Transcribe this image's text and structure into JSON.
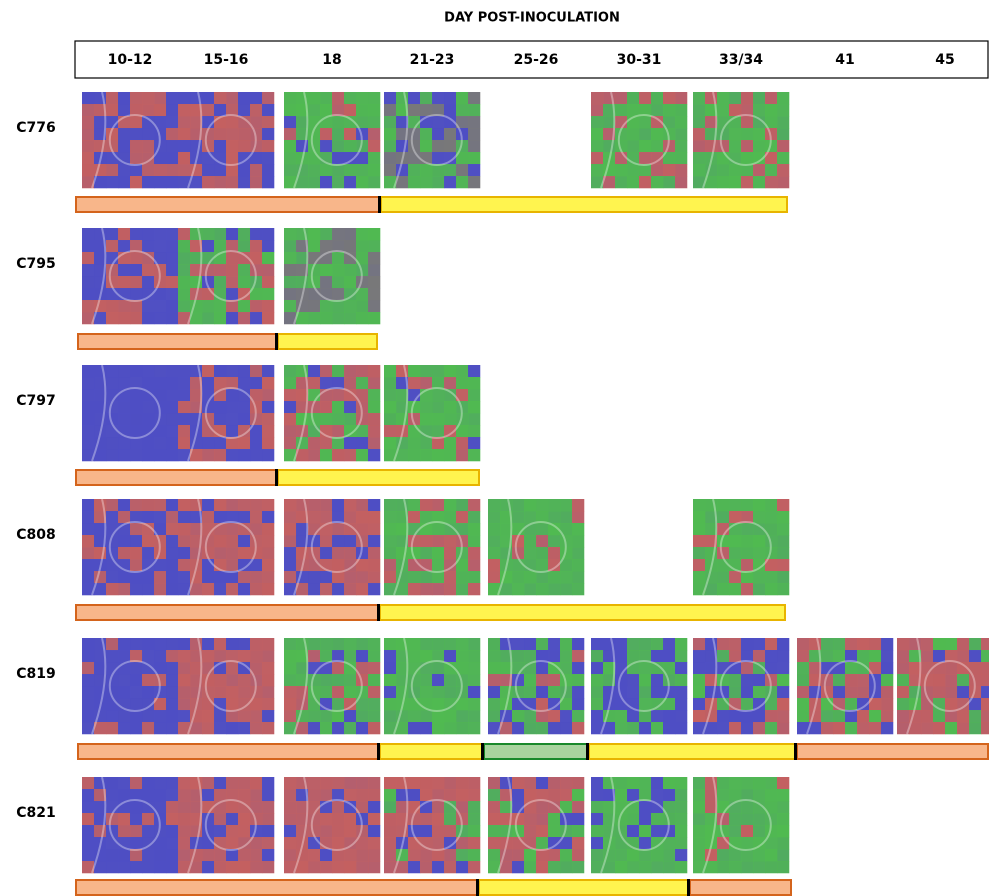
{
  "header": {
    "title": "DAY POST-INOCULATION",
    "columns": [
      "10-12",
      "15-16",
      "18",
      "21-23",
      "25-26",
      "30-31",
      "33/34",
      "41",
      "45"
    ]
  },
  "rows": [
    {
      "label": "C776"
    },
    {
      "label": "C795"
    },
    {
      "label": "C797"
    },
    {
      "label": "C808"
    },
    {
      "label": "C819"
    },
    {
      "label": "C821"
    }
  ]
}
